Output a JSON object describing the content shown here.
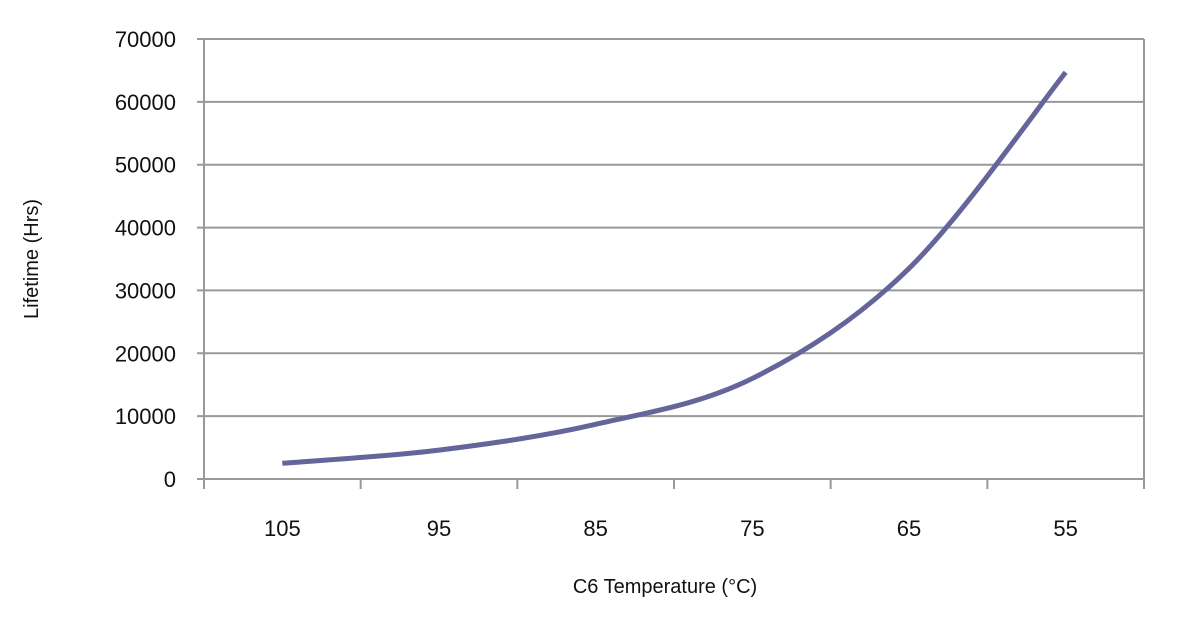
{
  "chart_data": {
    "type": "line",
    "title": "",
    "xlabel": "C6 Temperature (°C)",
    "ylabel": "Lifetime (Hrs)",
    "categories": [
      "105",
      "95",
      "85",
      "75",
      "65",
      "55"
    ],
    "series": [
      {
        "name": "Lifetime",
        "values": [
          2500,
          4600,
          8700,
          16000,
          33500,
          64700
        ],
        "color": "#64659a"
      }
    ],
    "ylim": [
      0,
      70000
    ],
    "yticks": [
      "0",
      "10000",
      "20000",
      "30000",
      "40000",
      "50000",
      "60000",
      "70000"
    ],
    "grid": true,
    "legend": "none"
  }
}
